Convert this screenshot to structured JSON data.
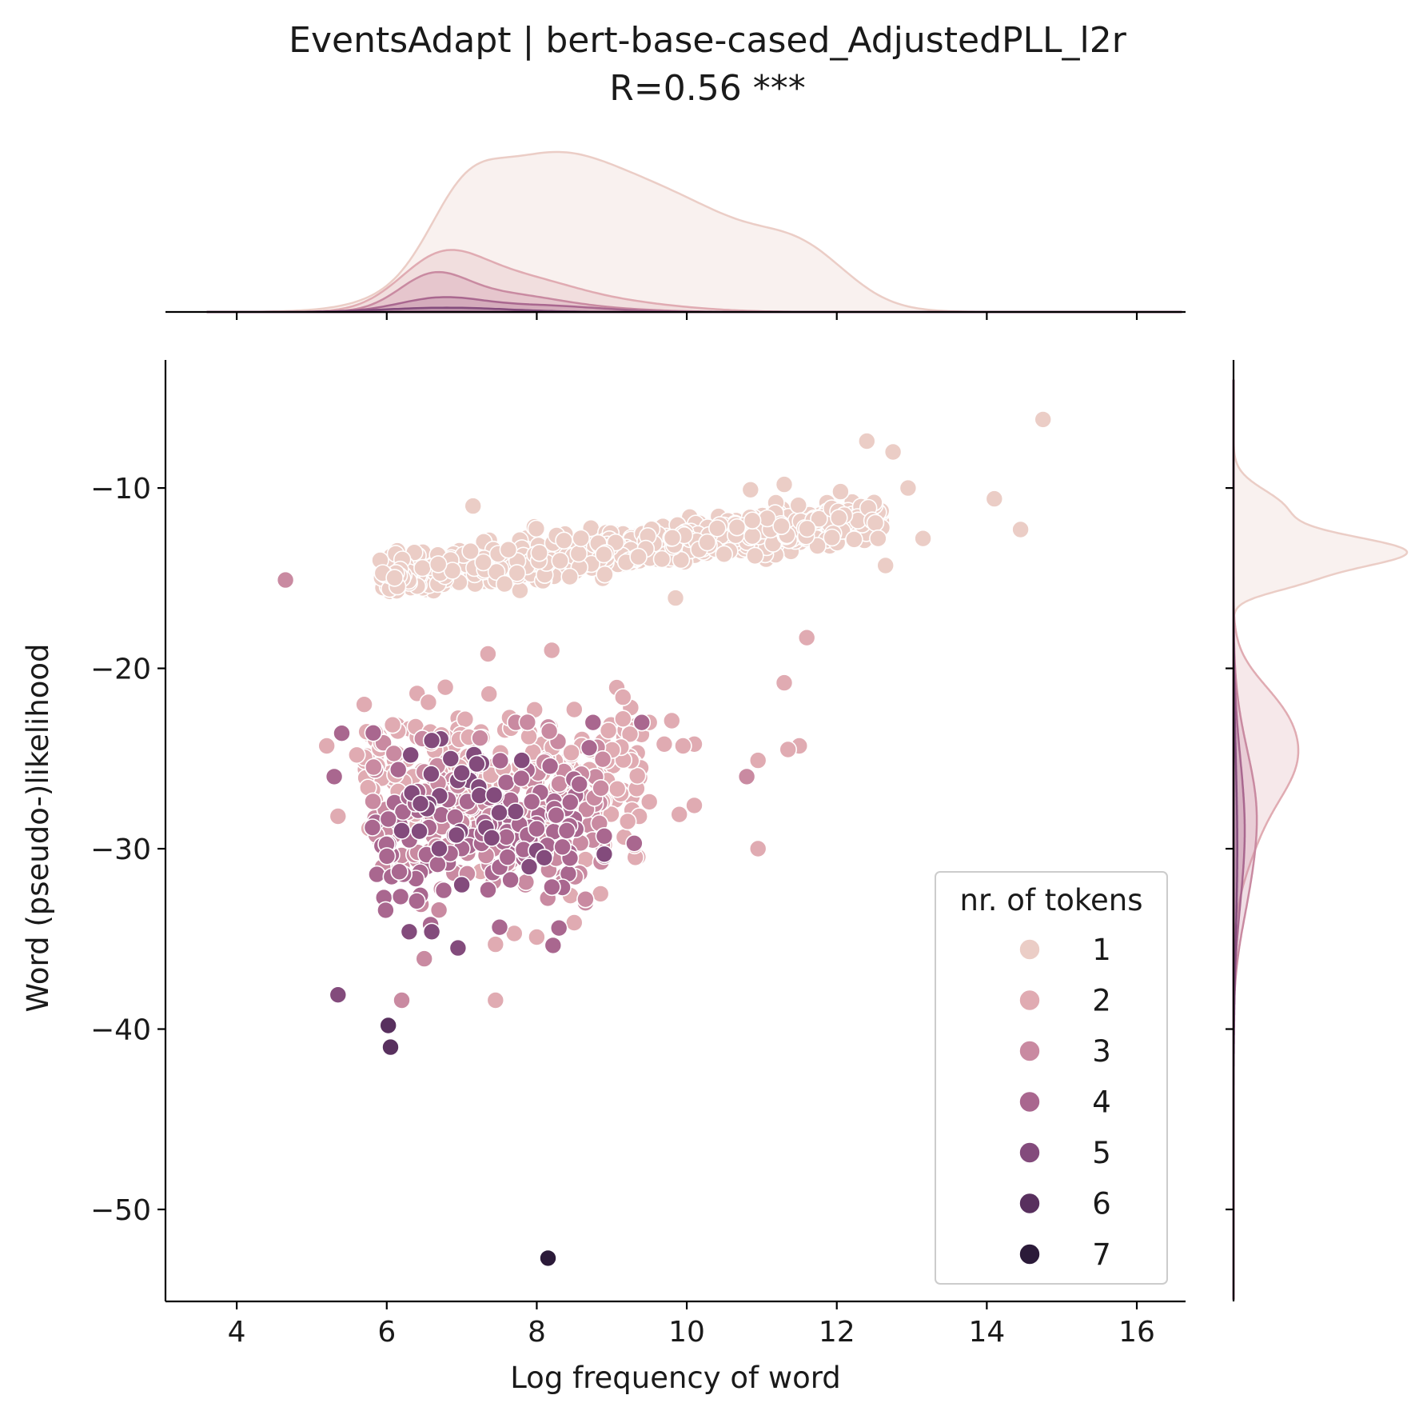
{
  "chart_data": {
    "type": "scatter",
    "title": "EventsAdapt | bert-base-cased_AdjustedPLL_l2r",
    "subtitle": "R=0.56 ***",
    "xlabel": "Log frequency of word",
    "ylabel": "Word (pseudo-)likelihood",
    "xlim": [
      3.05,
      16.65
    ],
    "ylim": [
      -55.1,
      -2.9
    ],
    "xticks": [
      4,
      6,
      8,
      10,
      12,
      14,
      16
    ],
    "yticks": [
      -10,
      -20,
      -30,
      -40,
      -50
    ],
    "xtick_labels": [
      "4",
      "6",
      "8",
      "10",
      "12",
      "14",
      "16"
    ],
    "ytick_labels": [
      "−10",
      "−20",
      "−30",
      "−40",
      "−50"
    ],
    "grid": false,
    "legend": {
      "title": "nr. of tokens",
      "placement": "lower-right",
      "entries": [
        "1",
        "2",
        "3",
        "4",
        "5",
        "6",
        "7"
      ]
    },
    "colors": [
      "#ebcdc6",
      "#e0abb2",
      "#c98aa1",
      "#a9678f",
      "#834b7c",
      "#58305e",
      "#2b1a39"
    ],
    "series": [
      {
        "name": "1",
        "points": [
          [
            14.75,
            -6.2
          ],
          [
            12.4,
            -7.4
          ],
          [
            12.75,
            -8.0
          ],
          [
            12.95,
            -10.0
          ],
          [
            14.1,
            -10.6
          ],
          [
            14.45,
            -12.3
          ],
          [
            13.15,
            -12.8
          ],
          [
            12.65,
            -14.3
          ],
          [
            9.85,
            -16.1
          ],
          [
            11.3,
            -9.8
          ],
          [
            10.85,
            -10.1
          ],
          [
            12.05,
            -10.2
          ],
          [
            7.15,
            -11.0
          ]
        ],
        "cluster": {
          "x": [
            5.9,
            12.6
          ],
          "y": [
            -15.8,
            -10.6
          ],
          "n": 700,
          "center": [
            8.8,
            -13.6
          ],
          "slope": 0.5,
          "spread": 1.0
        }
      },
      {
        "name": "2",
        "points": [
          [
            11.6,
            -18.3
          ],
          [
            11.3,
            -20.8
          ],
          [
            11.5,
            -24.3
          ],
          [
            11.35,
            -24.5
          ],
          [
            10.95,
            -25.1
          ],
          [
            10.95,
            -30.0
          ],
          [
            10.1,
            -24.2
          ],
          [
            10.1,
            -27.6
          ],
          [
            9.9,
            -28.1
          ],
          [
            9.5,
            -27.4
          ],
          [
            9.95,
            -24.3
          ],
          [
            9.7,
            -24.2
          ],
          [
            9.8,
            -22.9
          ],
          [
            9.5,
            -23.0
          ],
          [
            9.15,
            -22.8
          ],
          [
            9.15,
            -21.6
          ],
          [
            8.2,
            -19.0
          ],
          [
            7.35,
            -19.2
          ],
          [
            5.2,
            -24.3
          ],
          [
            5.35,
            -28.2
          ],
          [
            5.6,
            -24.8
          ],
          [
            5.7,
            -22.0
          ],
          [
            8.5,
            -34.1
          ],
          [
            8.45,
            -32.6
          ],
          [
            7.45,
            -35.3
          ],
          [
            7.45,
            -38.4
          ],
          [
            8.0,
            -34.9
          ],
          [
            7.7,
            -34.7
          ],
          [
            8.85,
            -32.5
          ],
          [
            8.9,
            -29.8
          ],
          [
            8.65,
            -30.6
          ]
        ],
        "cluster": {
          "x": [
            5.7,
            9.4
          ],
          "y": [
            -34.0,
            -20.4
          ],
          "n": 250,
          "center": [
            7.1,
            -26.0
          ],
          "slope": 0.0,
          "spread": 3.3
        }
      },
      {
        "name": "3",
        "points": [
          [
            4.65,
            -15.1
          ],
          [
            10.8,
            -26.0
          ],
          [
            8.65,
            -33.0
          ],
          [
            8.65,
            -32.8
          ],
          [
            8.4,
            -29.0
          ],
          [
            8.3,
            -26.4
          ],
          [
            8.1,
            -25.2
          ],
          [
            6.2,
            -38.4
          ],
          [
            6.5,
            -36.1
          ]
        ],
        "cluster": {
          "x": [
            5.8,
            8.9
          ],
          "y": [
            -35.0,
            -21.0
          ],
          "n": 160,
          "center": [
            7.0,
            -28.5
          ],
          "slope": 0.0,
          "spread": 3.6
        }
      },
      {
        "name": "4",
        "points": [
          [
            5.3,
            -26.0
          ],
          [
            5.4,
            -23.6
          ],
          [
            8.7,
            -24.4
          ],
          [
            8.75,
            -23.0
          ],
          [
            9.4,
            -23.0
          ],
          [
            8.9,
            -29.3
          ],
          [
            8.9,
            -30.4
          ],
          [
            9.3,
            -29.7
          ],
          [
            8.0,
            -28.9
          ],
          [
            8.4,
            -29.0
          ],
          [
            6.4,
            -32.9
          ]
        ],
        "cluster": {
          "x": [
            5.8,
            8.6
          ],
          "y": [
            -35.5,
            -22.0
          ],
          "n": 110,
          "center": [
            7.0,
            -29.5
          ],
          "slope": 0.0,
          "spread": 3.6
        }
      },
      {
        "name": "5",
        "points": [
          [
            5.35,
            -38.1
          ],
          [
            6.3,
            -34.6
          ],
          [
            8.0,
            -30.1
          ],
          [
            8.1,
            -30.5
          ],
          [
            7.8,
            -25.1
          ],
          [
            7.2,
            -25.3
          ],
          [
            6.7,
            -30.0
          ],
          [
            7.0,
            -32.0
          ],
          [
            6.6,
            -34.6
          ],
          [
            6.95,
            -35.5
          ],
          [
            7.4,
            -29.4
          ],
          [
            7.5,
            -28.0
          ],
          [
            6.2,
            -29.0
          ],
          [
            6.45,
            -27.5
          ],
          [
            7.9,
            -31.0
          ],
          [
            7.0,
            -25.8
          ],
          [
            8.9,
            -30.3
          ],
          [
            6.6,
            -24.0
          ]
        ],
        "cluster": {
          "x": [
            6.3,
            7.8
          ],
          "y": [
            -31.0,
            -23.0
          ],
          "n": 20,
          "center": [
            7.0,
            -27.0
          ],
          "slope": 0.0,
          "spread": 2.5
        }
      },
      {
        "name": "6",
        "points": [
          [
            6.02,
            -39.8
          ],
          [
            6.05,
            -41.0
          ]
        ]
      },
      {
        "name": "7",
        "points": [
          [
            8.15,
            -52.7
          ]
        ]
      }
    ],
    "marginal_x": [
      {
        "name": "1",
        "scale": 0.32,
        "peaks": [
          [
            8.0,
            0.9,
            1.05
          ],
          [
            10.0,
            0.6,
            1.1
          ],
          [
            11.6,
            0.25,
            0.6
          ],
          [
            7.0,
            0.3,
            0.45
          ]
        ]
      },
      {
        "name": "2",
        "scale": 0.125,
        "peaks": [
          [
            6.7,
            0.8,
            0.55
          ],
          [
            7.7,
            0.5,
            0.75
          ],
          [
            9.0,
            0.15,
            0.9
          ]
        ]
      },
      {
        "name": "3",
        "scale": 0.075,
        "peaks": [
          [
            6.6,
            0.9,
            0.45
          ],
          [
            7.5,
            0.45,
            0.7
          ],
          [
            8.6,
            0.1,
            0.8
          ]
        ]
      },
      {
        "name": "4",
        "scale": 0.034,
        "peaks": [
          [
            6.7,
            0.8,
            0.55
          ],
          [
            8.0,
            0.4,
            0.8
          ]
        ]
      },
      {
        "name": "5",
        "scale": 0.009,
        "peaks": [
          [
            6.8,
            1.0,
            0.8
          ]
        ]
      }
    ],
    "marginal_y": [
      {
        "name": "1",
        "scale": 0.36,
        "peaks": [
          [
            -13.6,
            1.0,
            0.9
          ],
          [
            -11.2,
            0.3,
            1.1
          ],
          [
            -15.3,
            0.25,
            0.6
          ]
        ]
      },
      {
        "name": "2",
        "scale": 0.14,
        "peaks": [
          [
            -25.0,
            0.8,
            2.2
          ],
          [
            -22.0,
            0.4,
            1.8
          ],
          [
            -29.0,
            0.3,
            2.5
          ]
        ]
      },
      {
        "name": "3",
        "scale": 0.06,
        "peaks": [
          [
            -28.0,
            0.8,
            3.5
          ],
          [
            -33.0,
            0.2,
            2.5
          ]
        ]
      },
      {
        "name": "4",
        "scale": 0.03,
        "peaks": [
          [
            -29.0,
            0.8,
            4.0
          ]
        ]
      },
      {
        "name": "5",
        "scale": 0.008,
        "peaks": [
          [
            -30.0,
            1.0,
            5.0
          ]
        ]
      }
    ]
  }
}
